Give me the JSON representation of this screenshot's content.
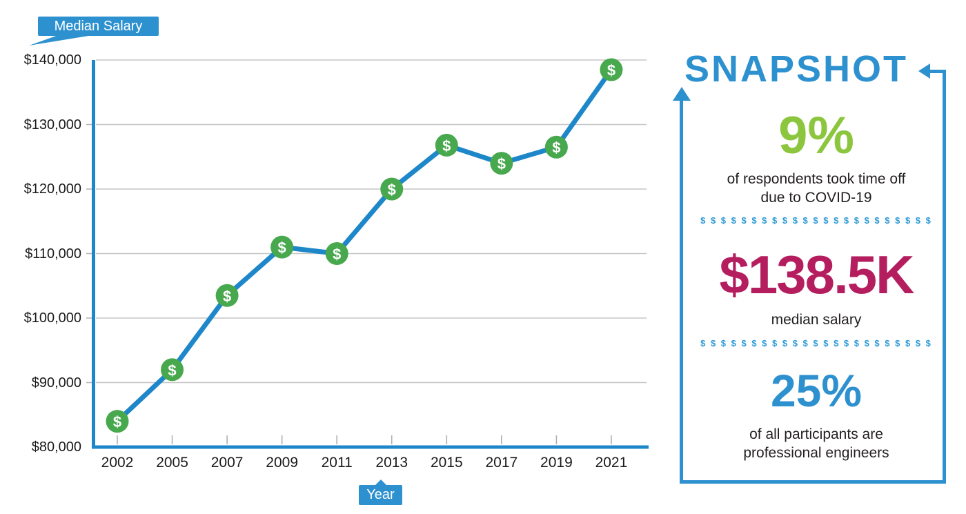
{
  "chart": {
    "y_axis_tag": "Median Salary",
    "x_axis_tag": "Year"
  },
  "chart_data": {
    "type": "line",
    "title": "",
    "xlabel": "Year",
    "ylabel": "Median Salary",
    "series_name": "Median Salary",
    "categories": [
      "2002",
      "2005",
      "2007",
      "2009",
      "2011",
      "2013",
      "2015",
      "2017",
      "2019",
      "2021"
    ],
    "values": [
      84000,
      92000,
      103500,
      111000,
      110000,
      120000,
      126800,
      124000,
      126500,
      138500
    ],
    "ylim": [
      80000,
      140000
    ],
    "y_ticks": [
      140000,
      130000,
      120000,
      110000,
      100000,
      90000,
      80000
    ],
    "y_tick_labels": [
      "$140,000",
      "$130,000",
      "$120,000",
      "$110,000",
      "$100,000",
      "$90,000",
      "$80,000"
    ],
    "grid": true,
    "legend": "none",
    "marker": "green-dollar-circle",
    "marker_symbol": "$"
  },
  "snapshot": {
    "title": "SNAPSHOT",
    "divider": "$ $ $ $ $ $ $ $ $ $ $ $ $ $ $ $ $ $ $ $ $ $ $",
    "stats": [
      {
        "value": "9%",
        "lines": [
          "of respondents took time off",
          "due to COVID-19"
        ]
      },
      {
        "value": "$138.5K",
        "lines": [
          "median salary"
        ]
      },
      {
        "value": "25%",
        "lines": [
          "of all participants are",
          "professional engineers"
        ]
      }
    ]
  },
  "colors": {
    "ui_blue": "#2E91CF",
    "line_blue": "#1D87C9",
    "marker_green": "#47A84D",
    "accent_green": "#8CC63F",
    "accent_magenta": "#B41E5E",
    "text_dark": "#231F20",
    "gridline": "#C5C5C5"
  }
}
